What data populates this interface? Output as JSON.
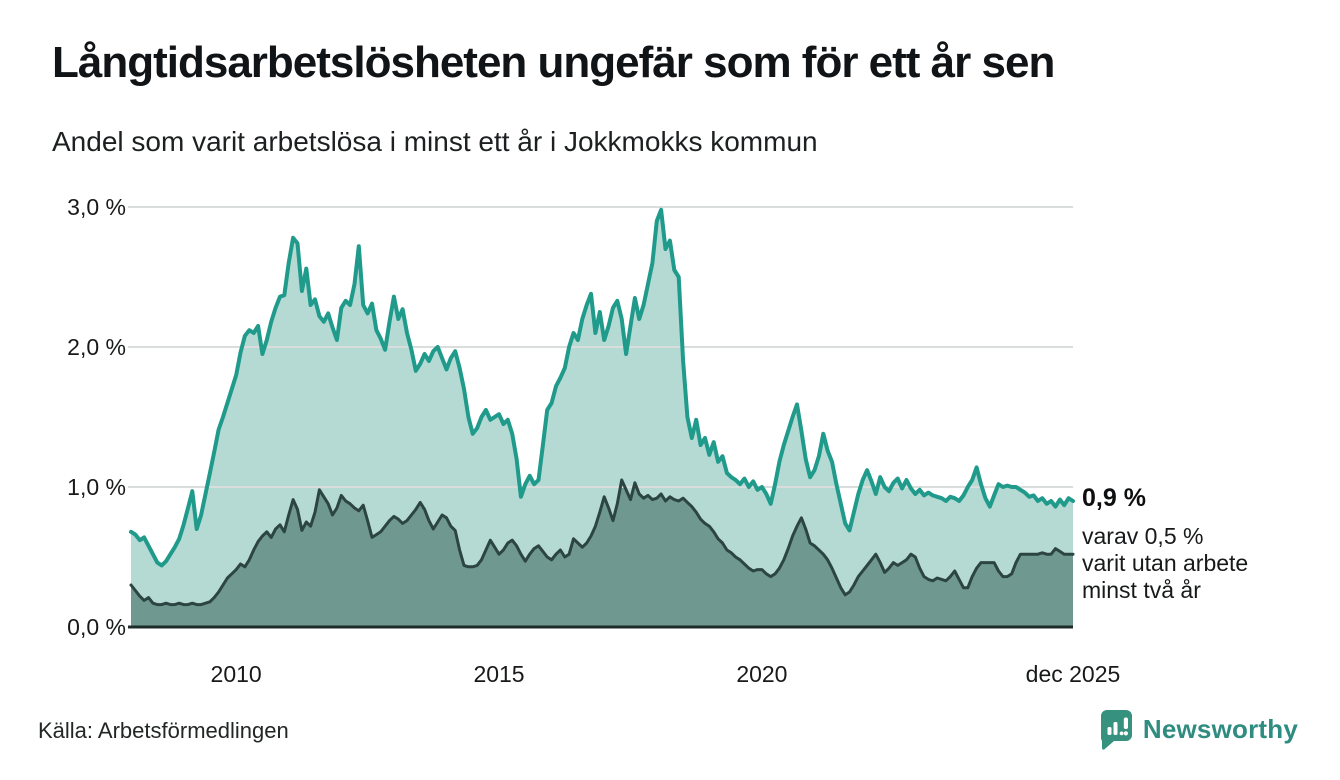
{
  "title": "Långtidsarbetslösheten ungefär som för ett år sen",
  "subtitle": "Andel som varit arbetslösa i minst ett år i Jokkmokks kommun",
  "annotation": {
    "value": "0,9 %",
    "lines": [
      "varav 0,5 %",
      "varit utan arbete",
      "minst två år"
    ]
  },
  "source": "Källa: Arbetsförmedlingen",
  "branding": {
    "name": "Newsworthy"
  },
  "colors": {
    "line_total": "#1f9a8b",
    "fill_total": "#b5dad4",
    "line_two_years": "#2c4543",
    "fill_two_years": "#6f9890",
    "lowlight_band": "#a6cbc4",
    "gridline": "#d9dddc",
    "axis": "#1d2b29",
    "brand_teal": "#2f8c80"
  },
  "chart_data": {
    "type": "area",
    "title": "Långtidsarbetslösheten ungefär som för ett år sen",
    "subtitle": "Andel som varit arbetslösa i minst ett år i Jokkmokks kommun",
    "x_start": "2008-01",
    "x_end": "2025-12",
    "x_tick_labels": [
      "2010",
      "2015",
      "2020",
      "dec 2025"
    ],
    "x_tick_month_indices": [
      24,
      84,
      144,
      215
    ],
    "y_tick_labels": [
      "3,0 %",
      "2,0 %",
      "1,0 %",
      "0,0 %"
    ],
    "y_tick_values": [
      3,
      2,
      1,
      0
    ],
    "ylim": [
      0,
      3.15
    ],
    "grid": "horizontal",
    "legend_position": "none",
    "unit": "%",
    "end_values": {
      "minst_ett_ar": 0.9,
      "minst_tva_ar": 0.5
    },
    "series": [
      {
        "name": "minst ett år",
        "values": [
          0.68,
          0.66,
          0.62,
          0.64,
          0.58,
          0.52,
          0.46,
          0.44,
          0.47,
          0.52,
          0.57,
          0.63,
          0.73,
          0.85,
          0.97,
          0.7,
          0.8,
          0.95,
          1.1,
          1.25,
          1.41,
          1.5,
          1.6,
          1.7,
          1.8,
          1.96,
          2.08,
          2.12,
          2.1,
          2.15,
          1.95,
          2.05,
          2.18,
          2.28,
          2.36,
          2.37,
          2.6,
          2.78,
          2.74,
          2.4,
          2.56,
          2.3,
          2.34,
          2.22,
          2.18,
          2.24,
          2.14,
          2.05,
          2.28,
          2.33,
          2.3,
          2.45,
          2.72,
          2.3,
          2.24,
          2.31,
          2.12,
          2.06,
          1.98,
          2.18,
          2.36,
          2.2,
          2.27,
          2.1,
          1.98,
          1.83,
          1.88,
          1.95,
          1.9,
          1.97,
          2.0,
          1.92,
          1.84,
          1.92,
          1.97,
          1.85,
          1.7,
          1.5,
          1.38,
          1.42,
          1.5,
          1.55,
          1.48,
          1.5,
          1.52,
          1.45,
          1.48,
          1.38,
          1.2,
          0.93,
          1.02,
          1.08,
          1.02,
          1.05,
          1.3,
          1.55,
          1.6,
          1.72,
          1.78,
          1.85,
          2.0,
          2.1,
          2.05,
          2.2,
          2.3,
          2.38,
          2.1,
          2.25,
          2.05,
          2.15,
          2.28,
          2.33,
          2.2,
          1.95,
          2.15,
          2.35,
          2.2,
          2.3,
          2.45,
          2.6,
          2.9,
          2.98,
          2.7,
          2.76,
          2.55,
          2.5,
          1.9,
          1.5,
          1.35,
          1.48,
          1.3,
          1.35,
          1.23,
          1.32,
          1.18,
          1.22,
          1.1,
          1.07,
          1.05,
          1.02,
          1.06,
          1.0,
          1.04,
          0.98,
          1.0,
          0.95,
          0.88,
          1.02,
          1.18,
          1.3,
          1.4,
          1.5,
          1.59,
          1.4,
          1.2,
          1.07,
          1.12,
          1.22,
          1.38,
          1.26,
          1.18,
          1.02,
          0.88,
          0.74,
          0.69,
          0.82,
          0.95,
          1.05,
          1.12,
          1.04,
          0.95,
          1.07,
          1.0,
          0.97,
          1.03,
          1.06,
          0.99,
          1.05,
          0.99,
          0.95,
          0.98,
          0.94,
          0.96,
          0.94,
          0.93,
          0.92,
          0.9,
          0.93,
          0.92,
          0.9,
          0.94,
          1.0,
          1.05,
          1.14,
          1.02,
          0.92,
          0.86,
          0.94,
          1.02,
          1.0,
          1.01,
          1.0,
          1.0,
          0.98,
          0.96,
          0.93,
          0.94,
          0.9,
          0.92,
          0.88,
          0.9,
          0.86,
          0.91,
          0.87,
          0.92,
          0.9
        ]
      },
      {
        "name": "minst två år",
        "values": [
          0.3,
          0.26,
          0.22,
          0.19,
          0.21,
          0.17,
          0.16,
          0.16,
          0.17,
          0.16,
          0.16,
          0.17,
          0.16,
          0.16,
          0.17,
          0.16,
          0.16,
          0.17,
          0.18,
          0.21,
          0.25,
          0.3,
          0.35,
          0.38,
          0.41,
          0.45,
          0.43,
          0.48,
          0.55,
          0.61,
          0.65,
          0.68,
          0.64,
          0.7,
          0.73,
          0.68,
          0.8,
          0.91,
          0.84,
          0.69,
          0.75,
          0.72,
          0.82,
          0.98,
          0.93,
          0.88,
          0.8,
          0.85,
          0.94,
          0.9,
          0.88,
          0.85,
          0.83,
          0.87,
          0.76,
          0.64,
          0.66,
          0.68,
          0.72,
          0.76,
          0.79,
          0.77,
          0.74,
          0.76,
          0.8,
          0.84,
          0.89,
          0.84,
          0.76,
          0.7,
          0.75,
          0.8,
          0.78,
          0.72,
          0.69,
          0.55,
          0.44,
          0.43,
          0.43,
          0.44,
          0.48,
          0.55,
          0.62,
          0.57,
          0.52,
          0.55,
          0.6,
          0.62,
          0.58,
          0.52,
          0.47,
          0.52,
          0.56,
          0.58,
          0.54,
          0.5,
          0.48,
          0.52,
          0.55,
          0.5,
          0.52,
          0.63,
          0.6,
          0.57,
          0.6,
          0.65,
          0.72,
          0.82,
          0.93,
          0.85,
          0.76,
          0.88,
          1.05,
          0.98,
          0.91,
          1.03,
          0.95,
          0.92,
          0.94,
          0.91,
          0.92,
          0.95,
          0.9,
          0.93,
          0.91,
          0.9,
          0.92,
          0.89,
          0.86,
          0.82,
          0.77,
          0.74,
          0.72,
          0.68,
          0.63,
          0.6,
          0.55,
          0.53,
          0.5,
          0.48,
          0.45,
          0.42,
          0.4,
          0.41,
          0.41,
          0.38,
          0.36,
          0.38,
          0.42,
          0.48,
          0.56,
          0.65,
          0.72,
          0.78,
          0.7,
          0.6,
          0.58,
          0.55,
          0.52,
          0.48,
          0.42,
          0.35,
          0.28,
          0.23,
          0.25,
          0.3,
          0.36,
          0.4,
          0.44,
          0.48,
          0.52,
          0.46,
          0.39,
          0.42,
          0.46,
          0.44,
          0.46,
          0.48,
          0.52,
          0.5,
          0.42,
          0.36,
          0.34,
          0.33,
          0.35,
          0.34,
          0.33,
          0.36,
          0.4,
          0.34,
          0.28,
          0.28,
          0.36,
          0.42,
          0.46,
          0.46,
          0.46,
          0.46,
          0.4,
          0.36,
          0.36,
          0.38,
          0.46,
          0.52,
          0.52,
          0.52,
          0.52,
          0.52,
          0.53,
          0.52,
          0.52,
          0.56,
          0.54,
          0.52,
          0.52,
          0.52
        ]
      }
    ],
    "lowlight_band_points": [
      [
        0.5,
        0.27
      ],
      [
        1.5,
        0.13
      ],
      [
        2.3,
        0.13
      ],
      [
        2.5,
        0.02
      ],
      [
        2.8,
        0.13
      ],
      [
        18.8,
        0.13
      ],
      [
        19.8,
        0.0
      ]
    ]
  }
}
